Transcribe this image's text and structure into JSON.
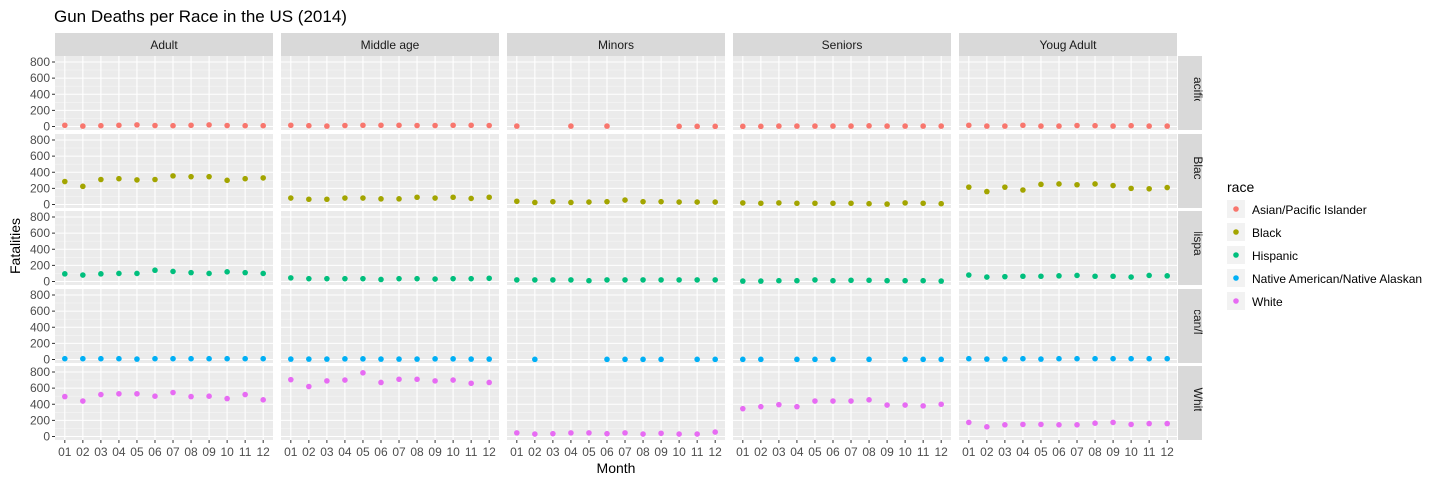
{
  "chart_data": {
    "type": "scatter",
    "title": "Gun Deaths per Race in the US (2014)",
    "xlabel": "Month",
    "ylabel": "Fatalities",
    "ylim": [
      0,
      800
    ],
    "y_ticks": [
      0,
      200,
      400,
      600,
      800
    ],
    "x_categories": [
      "01",
      "02",
      "03",
      "04",
      "05",
      "06",
      "07",
      "08",
      "09",
      "10",
      "11",
      "12"
    ],
    "grid": true,
    "legend_position": "right",
    "legend_title": "race",
    "facet_columns": [
      "Adult",
      "Middle age",
      "Minors",
      "Seniors",
      "Youg Adult"
    ],
    "facet_rows": [
      "Asian/Pacific Islander",
      "Black",
      "Hispanic",
      "Native American/Native Alaskan",
      "White"
    ],
    "series": [
      {
        "name": "Asian/Pacific Islander",
        "color": "#F8766D",
        "panels": {
          "Adult": [
            15,
            5,
            10,
            15,
            20,
            12,
            10,
            15,
            20,
            12,
            10,
            10
          ],
          "Middle age": [
            15,
            10,
            5,
            12,
            15,
            15,
            15,
            12,
            12,
            15,
            15,
            12
          ],
          "Minors": [
            5,
            null,
            null,
            5,
            null,
            5,
            null,
            null,
            null,
            2,
            2,
            2
          ],
          "Seniors": [
            2,
            2,
            5,
            5,
            5,
            5,
            5,
            8,
            5,
            5,
            5,
            5
          ],
          "Youg Adult": [
            15,
            5,
            5,
            15,
            5,
            5,
            12,
            10,
            5,
            10,
            5,
            5
          ]
        }
      },
      {
        "name": "Black",
        "color": "#A3A500",
        "panels": {
          "Adult": [
            285,
            225,
            310,
            320,
            305,
            310,
            355,
            345,
            345,
            300,
            320,
            330
          ],
          "Middle age": [
            80,
            65,
            65,
            80,
            80,
            70,
            70,
            90,
            80,
            90,
            75,
            90
          ],
          "Minors": [
            40,
            25,
            35,
            25,
            30,
            35,
            55,
            35,
            35,
            30,
            30,
            30
          ],
          "Seniors": [
            20,
            15,
            20,
            15,
            15,
            15,
            15,
            10,
            5,
            20,
            15,
            10
          ],
          "Youg Adult": [
            215,
            160,
            215,
            180,
            250,
            255,
            245,
            255,
            235,
            200,
            195,
            210
          ]
        }
      },
      {
        "name": "Hispanic",
        "color": "#00BF7D",
        "panels": {
          "Adult": [
            95,
            80,
            95,
            100,
            100,
            140,
            125,
            110,
            100,
            120,
            110,
            100
          ],
          "Middle age": [
            45,
            35,
            35,
            35,
            35,
            25,
            35,
            35,
            30,
            35,
            35,
            40
          ],
          "Minors": [
            20,
            20,
            20,
            20,
            10,
            20,
            20,
            20,
            20,
            20,
            20,
            20
          ],
          "Seniors": [
            5,
            5,
            10,
            10,
            20,
            10,
            15,
            15,
            10,
            10,
            10,
            5
          ],
          "Youg Adult": [
            80,
            55,
            60,
            65,
            65,
            70,
            75,
            65,
            65,
            55,
            75,
            70
          ]
        }
      },
      {
        "name": "Native American/Native Alaskan",
        "color": "#00B0F6",
        "panels": {
          "Adult": [
            10,
            10,
            10,
            10,
            5,
            10,
            10,
            10,
            10,
            10,
            10,
            10
          ],
          "Middle age": [
            5,
            5,
            5,
            8,
            8,
            5,
            5,
            5,
            8,
            8,
            5,
            5
          ],
          "Minors": [
            null,
            2,
            null,
            null,
            null,
            2,
            2,
            2,
            2,
            null,
            2,
            2
          ],
          "Seniors": [
            2,
            2,
            null,
            2,
            2,
            2,
            null,
            2,
            null,
            2,
            2,
            2
          ],
          "Youg Adult": [
            10,
            5,
            5,
            10,
            5,
            10,
            10,
            10,
            10,
            10,
            10,
            10
          ]
        }
      },
      {
        "name": "White",
        "color": "#E76BF3",
        "panels": {
          "Adult": [
            495,
            440,
            520,
            530,
            530,
            500,
            545,
            495,
            500,
            470,
            520,
            455
          ],
          "Middle age": [
            705,
            620,
            690,
            700,
            790,
            670,
            710,
            710,
            690,
            700,
            660,
            670
          ],
          "Minors": [
            45,
            30,
            35,
            45,
            45,
            35,
            45,
            30,
            40,
            30,
            30,
            55
          ],
          "Seniors": [
            345,
            370,
            395,
            370,
            440,
            440,
            440,
            455,
            390,
            390,
            380,
            400
          ],
          "Youg Adult": [
            175,
            120,
            145,
            150,
            150,
            145,
            145,
            165,
            175,
            150,
            160,
            160
          ]
        }
      }
    ]
  }
}
